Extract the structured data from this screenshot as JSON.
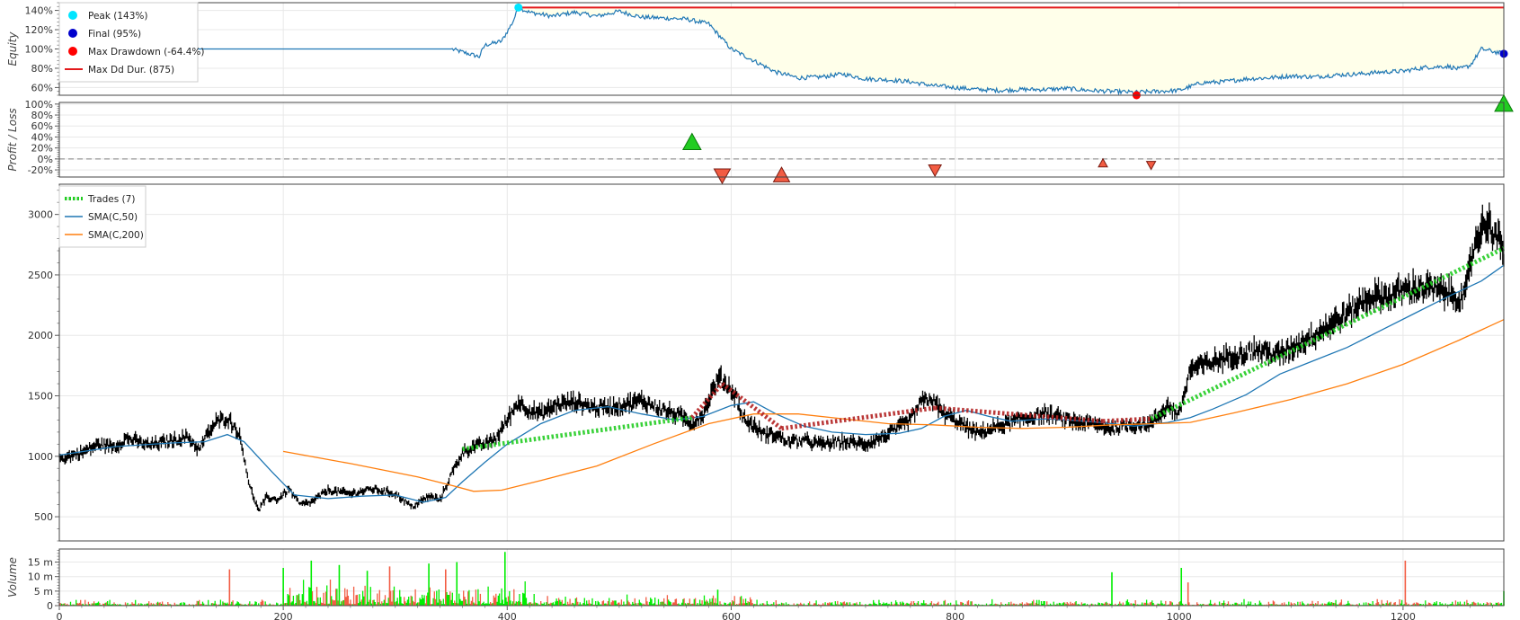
{
  "colors": {
    "equity": "#1f77b4",
    "drawdown_fill": "#ffffea",
    "max_dd_line": "#e31a1c",
    "peak": "#00e5ff",
    "final": "#0000cc",
    "max_drawdown": "#ff0000",
    "trade_win": "#22cc22",
    "trade_loss": "#b22222",
    "sma50": "#1f77b4",
    "sma200": "#ff7f0e",
    "candle": "#000000",
    "vol_up": "#00ee00",
    "vol_down": "#f25c43",
    "grid": "#e8e8e8",
    "zero_line": "#999999"
  },
  "chart_data": [
    {
      "type": "line",
      "panel": "equity",
      "ylabel": "Equity",
      "yunit": "%",
      "yticks": [
        60,
        80,
        100,
        120,
        140
      ],
      "ylim": [
        52,
        148
      ],
      "xlim": [
        0,
        1290
      ],
      "xticks": [
        200,
        400,
        600,
        800,
        1000,
        1200
      ],
      "series": [
        {
          "name": "Equity",
          "x": [
            0,
            350,
            375,
            380,
            395,
            400,
            405,
            410,
            420,
            440,
            460,
            480,
            500,
            520,
            540,
            560,
            580,
            600,
            620,
            640,
            660,
            680,
            700,
            720,
            740,
            760,
            780,
            800,
            820,
            840,
            860,
            880,
            900,
            920,
            940,
            960,
            980,
            1000,
            1020,
            1040,
            1060,
            1080,
            1100,
            1120,
            1140,
            1160,
            1180,
            1200,
            1220,
            1240,
            1250,
            1260,
            1270,
            1290
          ],
          "y": [
            100,
            100,
            92,
            104,
            108,
            118,
            128,
            143,
            138,
            134,
            138,
            134,
            139,
            133,
            132,
            131,
            126,
            100,
            88,
            76,
            70,
            71,
            74,
            69,
            68,
            66,
            62,
            60,
            58,
            57,
            58,
            58,
            59,
            57,
            56,
            55,
            56,
            57,
            65,
            66,
            69,
            70,
            72,
            71,
            73,
            74,
            76,
            77,
            81,
            82,
            79,
            83,
            100,
            95
          ]
        }
      ],
      "markers": [
        {
          "name": "Peak (143%)",
          "x": 410,
          "y": 143
        },
        {
          "name": "Final (95%)",
          "x": 1290,
          "y": 95
        },
        {
          "name": "Max Drawdown (-64.4%)",
          "x": 962,
          "y": 51
        }
      ],
      "lines": [
        {
          "name": "Max Dd Dur. (875)",
          "x_start": 410,
          "x_end": 1290,
          "y": 143
        }
      ],
      "legend": [
        "Peak (143%)",
        "Final (95%)",
        "Max Drawdown (-64.4%)",
        "Max Dd Dur. (875)"
      ],
      "legend_position": "top-left"
    },
    {
      "type": "scatter",
      "panel": "pnl",
      "ylabel": "Profit / Loss",
      "yunit": "%",
      "yticks": [
        -20,
        0,
        20,
        40,
        60,
        80,
        100
      ],
      "ylim": [
        -33,
        103
      ],
      "points": [
        {
          "x": 565,
          "y": 30,
          "direction": "up",
          "win": true
        },
        {
          "x": 592,
          "y": -30,
          "direction": "down",
          "win": false
        },
        {
          "x": 645,
          "y": -30,
          "direction": "up",
          "win": false
        },
        {
          "x": 782,
          "y": -20,
          "direction": "down",
          "win": false
        },
        {
          "x": 932,
          "y": -8,
          "direction": "up",
          "win": false
        },
        {
          "x": 975,
          "y": -11,
          "direction": "down",
          "win": false
        },
        {
          "x": 1290,
          "y": 100,
          "direction": "up",
          "win": true
        }
      ]
    },
    {
      "type": "line",
      "panel": "ohlc",
      "yticks": [
        500,
        1000,
        1500,
        2000,
        2500,
        3000
      ],
      "ylim": [
        300,
        3250
      ],
      "price": {
        "x": [
          0,
          20,
          35,
          50,
          60,
          80,
          100,
          115,
          125,
          130,
          140,
          150,
          160,
          165,
          170,
          178,
          185,
          195,
          205,
          215,
          225,
          240,
          260,
          280,
          300,
          315,
          330,
          340,
          350,
          360,
          370,
          380,
          390,
          400,
          410,
          420,
          430,
          445,
          460,
          480,
          500,
          520,
          540,
          555,
          565,
          575,
          585,
          590,
          598,
          605,
          610,
          620,
          630,
          640,
          650,
          665,
          680,
          700,
          720,
          740,
          760,
          770,
          778,
          790,
          800,
          810,
          820,
          840,
          860,
          880,
          900,
          920,
          940,
          960,
          975,
          990,
          1000,
          1010,
          1030,
          1050,
          1070,
          1090,
          1110,
          1130,
          1150,
          1170,
          1190,
          1200,
          1220,
          1240,
          1255,
          1260,
          1265,
          1275,
          1285,
          1290
        ],
        "y": [
          980,
          1030,
          1100,
          1080,
          1150,
          1090,
          1130,
          1160,
          1050,
          1150,
          1280,
          1320,
          1200,
          1000,
          750,
          550,
          660,
          640,
          730,
          600,
          620,
          720,
          690,
          730,
          690,
          580,
          670,
          640,
          850,
          1030,
          1080,
          1100,
          1150,
          1300,
          1450,
          1380,
          1350,
          1430,
          1450,
          1400,
          1420,
          1460,
          1380,
          1330,
          1270,
          1350,
          1580,
          1650,
          1570,
          1480,
          1320,
          1250,
          1180,
          1180,
          1120,
          1130,
          1100,
          1120,
          1100,
          1180,
          1300,
          1450,
          1480,
          1350,
          1300,
          1240,
          1190,
          1250,
          1310,
          1350,
          1300,
          1270,
          1230,
          1260,
          1270,
          1420,
          1340,
          1720,
          1780,
          1840,
          1880,
          1840,
          1950,
          2060,
          2180,
          2320,
          2330,
          2380,
          2400,
          2350,
          2300,
          2580,
          2800,
          2950,
          2800,
          2650
        ],
        "name": "OHLC"
      },
      "series": [
        {
          "name": "SMA(C,50)",
          "x": [
            0,
            50,
            100,
            130,
            150,
            165,
            190,
            210,
            240,
            270,
            300,
            325,
            345,
            360,
            380,
            400,
            430,
            460,
            490,
            520,
            550,
            575,
            600,
            620,
            640,
            665,
            690,
            720,
            750,
            770,
            790,
            810,
            830,
            850,
            880,
            900,
            930,
            960,
            990,
            1010,
            1030,
            1060,
            1090,
            1120,
            1150,
            1180,
            1210,
            1240,
            1270,
            1290
          ],
          "y": [
            1010,
            1080,
            1110,
            1120,
            1180,
            1120,
            870,
            680,
            650,
            670,
            680,
            620,
            660,
            790,
            950,
            1100,
            1270,
            1380,
            1410,
            1350,
            1300,
            1330,
            1420,
            1450,
            1350,
            1250,
            1200,
            1180,
            1190,
            1230,
            1330,
            1380,
            1330,
            1290,
            1310,
            1300,
            1280,
            1250,
            1280,
            1320,
            1390,
            1510,
            1680,
            1790,
            1900,
            2040,
            2180,
            2320,
            2450,
            2580
          ]
        },
        {
          "name": "SMA(C,200)",
          "x": [
            200,
            260,
            320,
            350,
            370,
            395,
            430,
            480,
            530,
            580,
            620,
            660,
            700,
            740,
            780,
            820,
            860,
            900,
            940,
            980,
            1010,
            1050,
            1100,
            1150,
            1200,
            1250,
            1290
          ],
          "y": [
            1040,
            940,
            830,
            760,
            710,
            720,
            800,
            920,
            1100,
            1270,
            1350,
            1350,
            1310,
            1270,
            1260,
            1240,
            1230,
            1240,
            1260,
            1270,
            1280,
            1360,
            1470,
            1600,
            1760,
            1960,
            2130
          ]
        }
      ],
      "trades": [
        {
          "x_start": 360,
          "y_start": 1060,
          "x_end": 565,
          "y_end": 1320,
          "win": true
        },
        {
          "x_start": 565,
          "y_start": 1320,
          "x_end": 592,
          "y_end": 1600,
          "win": false
        },
        {
          "x_start": 592,
          "y_start": 1600,
          "x_end": 645,
          "y_end": 1230,
          "win": false
        },
        {
          "x_start": 645,
          "y_start": 1230,
          "x_end": 782,
          "y_end": 1400,
          "win": false
        },
        {
          "x_start": 782,
          "y_start": 1400,
          "x_end": 932,
          "y_end": 1290,
          "win": false
        },
        {
          "x_start": 932,
          "y_start": 1290,
          "x_end": 975,
          "y_end": 1310,
          "win": false
        },
        {
          "x_start": 975,
          "y_start": 1310,
          "x_end": 1290,
          "y_end": 2720,
          "win": true
        }
      ],
      "legend": [
        "Trades (7)",
        "SMA(C,50)",
        "SMA(C,200)"
      ],
      "legend_position": "top-left"
    },
    {
      "type": "bar",
      "panel": "volume",
      "ylabel": "Volume",
      "yticks": [
        0,
        5,
        10,
        15
      ],
      "ytick_labels": [
        "0",
        "5 m",
        "10 m",
        "15 m"
      ],
      "ylim": [
        0,
        19.5
      ],
      "spikes": [
        {
          "x": 152,
          "v": 12.5,
          "up": false
        },
        {
          "x": 200,
          "v": 13,
          "up": true
        },
        {
          "x": 225,
          "v": 15.5,
          "up": true
        },
        {
          "x": 250,
          "v": 14,
          "up": true
        },
        {
          "x": 275,
          "v": 12,
          "up": true
        },
        {
          "x": 295,
          "v": 13.5,
          "up": false
        },
        {
          "x": 330,
          "v": 14.5,
          "up": true
        },
        {
          "x": 345,
          "v": 12.5,
          "up": false
        },
        {
          "x": 355,
          "v": 15,
          "up": true
        },
        {
          "x": 398,
          "v": 18.5,
          "up": true
        },
        {
          "x": 588,
          "v": 5.5,
          "up": true
        },
        {
          "x": 940,
          "v": 11.5,
          "up": true
        },
        {
          "x": 1002,
          "v": 13,
          "up": true
        },
        {
          "x": 1008,
          "v": 8,
          "up": false
        },
        {
          "x": 1202,
          "v": 15.5,
          "up": false
        },
        {
          "x": 1290,
          "v": 5,
          "up": true
        }
      ]
    }
  ],
  "x_axis": {
    "ticks": [
      0,
      200,
      400,
      600,
      800,
      1000,
      1200
    ]
  }
}
